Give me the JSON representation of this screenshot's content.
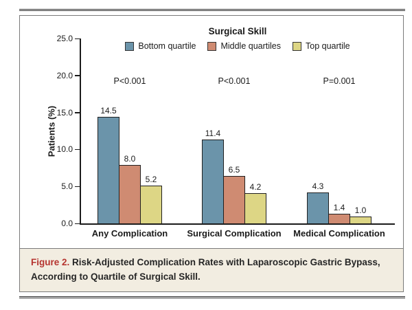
{
  "figure": {
    "caption_label": "Figure 2.",
    "caption_text": "Risk-Adjusted Complication Rates with Laparoscopic Gastric Bypass, According to Quartile of Surgical Skill."
  },
  "chart_data": {
    "type": "bar",
    "title": "Surgical Skill",
    "xlabel": "",
    "ylabel": "Patients (%)",
    "ylim": [
      0,
      25
    ],
    "yticks": [
      0,
      5,
      10,
      15,
      20,
      25
    ],
    "ytick_labels": [
      "0.0",
      "5.0",
      "10.0",
      "15.0",
      "20.0",
      "25.0"
    ],
    "grid": false,
    "legend_position": "top-center",
    "categories": [
      "Any Complication",
      "Surgical Complication",
      "Medical Complication"
    ],
    "p_values": [
      "P<0.001",
      "P<0.001",
      "P=0.001"
    ],
    "series": [
      {
        "name": "Bottom quartile",
        "color": "#6b94aa",
        "values": [
          14.5,
          11.4,
          4.3
        ]
      },
      {
        "name": "Middle quartiles",
        "color": "#cf8b72",
        "values": [
          8.0,
          6.5,
          1.4
        ]
      },
      {
        "name": "Top quartile",
        "color": "#ddd685",
        "values": [
          5.2,
          4.2,
          1.0
        ]
      }
    ],
    "value_labels_shown": true
  },
  "colors": {
    "caption_background": "#f2ede1",
    "figure_label_red": "#b5342f",
    "axis": "#1a1a1a",
    "panel_border": "#7a7a7a",
    "bar_border": "#1f1f1f"
  }
}
